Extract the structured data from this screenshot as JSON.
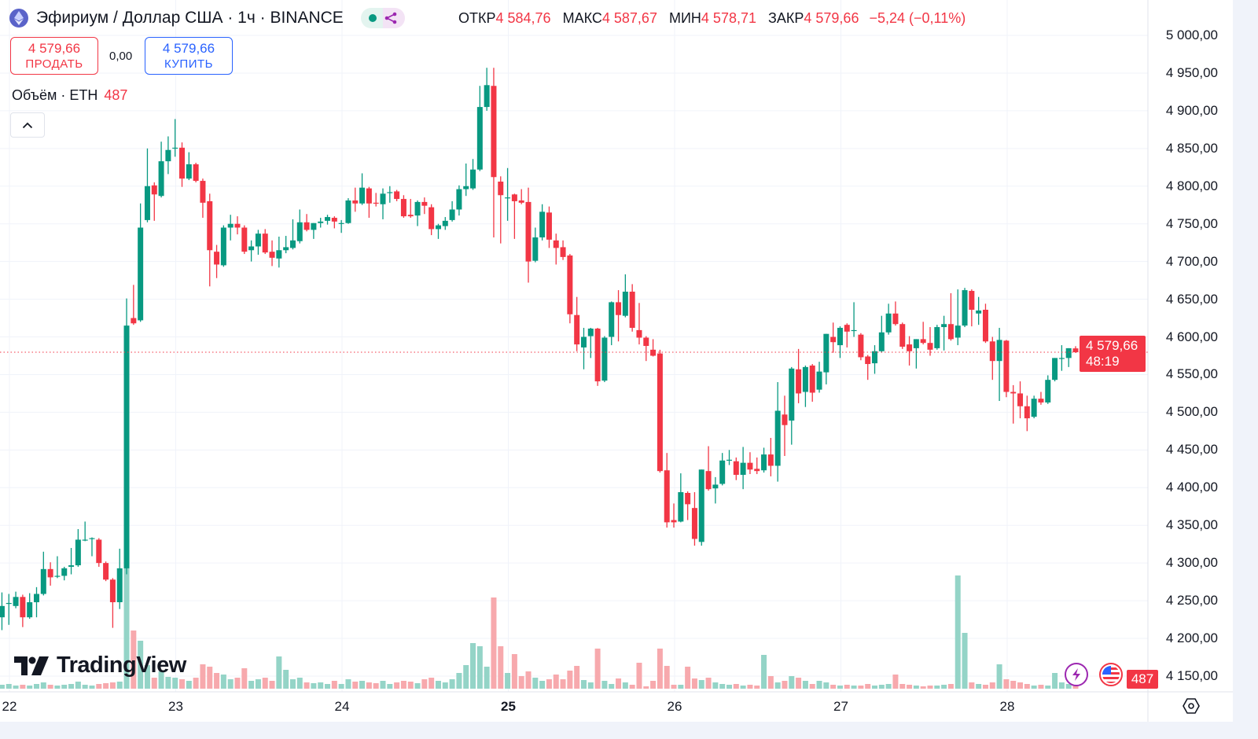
{
  "header": {
    "title": "Эфириум / Доллар США · 1ч · BINANCE",
    "ohlc": {
      "open_label": "ОТКР",
      "open": "4 584,76",
      "high_label": "МАКС",
      "high": "4 587,67",
      "low_label": "МИН",
      "low": "4 578,71",
      "close_label": "ЗАКР",
      "close": "4 579,66",
      "change": "−5,24 (−0,11%)"
    }
  },
  "trade": {
    "sell_price": "4 579,66",
    "sell_label": "ПРОДАТЬ",
    "spread": "0,00",
    "buy_price": "4 579,66",
    "buy_label": "КУПИТЬ"
  },
  "volume_legend": {
    "label": "Объём · ETH",
    "value": "487"
  },
  "price_axis": [
    "5 000,00",
    "4 950,00",
    "4 900,00",
    "4 850,00",
    "4 800,00",
    "4 750,00",
    "4 700,00",
    "4 650,00",
    "4 600,00",
    "4 550,00",
    "4 500,00",
    "4 450,00",
    "4 400,00",
    "4 350,00",
    "4 300,00",
    "4 250,00",
    "4 200,00",
    "4 150,00"
  ],
  "time_axis": [
    {
      "label": "22"
    },
    {
      "label": "23"
    },
    {
      "label": "24"
    },
    {
      "label": "25",
      "bold": true
    },
    {
      "label": "26"
    },
    {
      "label": "27"
    },
    {
      "label": "28"
    }
  ],
  "current_price": {
    "price": "4 579,66",
    "countdown": "48:19"
  },
  "current_volume": "487",
  "brand": "TradingView",
  "colors": {
    "up": "#089981",
    "down": "#f23645",
    "up_volume": "#94d4c7",
    "down_volume": "#f7a9ad",
    "buy": "#2962ff",
    "grid": "#f0f3fa"
  },
  "icons": [
    "ethereum-icon",
    "share-icon",
    "chevron-up-icon",
    "lightning-icon",
    "us-flag-icon",
    "settings-icon"
  ],
  "chart_data": {
    "type": "candlestick",
    "interval": "1h",
    "x_start": "21 23:00",
    "ylim": [
      4150,
      5000
    ],
    "grid": true,
    "ohlc": [
      [
        4228,
        4261,
        4211,
        4243
      ],
      [
        4247,
        4259,
        4218,
        4247
      ],
      [
        4243,
        4262,
        4240,
        4255
      ],
      [
        4255,
        4258,
        4215,
        4228
      ],
      [
        4228,
        4260,
        4226,
        4248
      ],
      [
        4248,
        4268,
        4228,
        4259
      ],
      [
        4259,
        4315,
        4257,
        4292
      ],
      [
        4292,
        4301,
        4270,
        4281
      ],
      [
        4283,
        4309,
        4280,
        4283
      ],
      [
        4283,
        4295,
        4277,
        4293
      ],
      [
        4295,
        4320,
        4285,
        4297
      ],
      [
        4297,
        4345,
        4295,
        4331
      ],
      [
        4331,
        4355,
        4329,
        4331
      ],
      [
        4333,
        4334,
        4309,
        4333
      ],
      [
        4331,
        4333,
        4295,
        4300
      ],
      [
        4300,
        4302,
        4276,
        4278
      ],
      [
        4278,
        4280,
        4214,
        4248
      ],
      [
        4248,
        4319,
        4239,
        4293
      ],
      [
        4293,
        4651,
        4285,
        4615
      ],
      [
        4625,
        4669,
        4616,
        4618
      ],
      [
        4622,
        4777,
        4620,
        4745
      ],
      [
        4755,
        4850,
        4752,
        4800
      ],
      [
        4801,
        4805,
        4754,
        4789
      ],
      [
        4787,
        4859,
        4785,
        4833
      ],
      [
        4833,
        4866,
        4816,
        4848
      ],
      [
        4851,
        4889,
        4839,
        4851
      ],
      [
        4851,
        4858,
        4799,
        4810
      ],
      [
        4810,
        4845,
        4808,
        4829
      ],
      [
        4829,
        4831,
        4805,
        4807
      ],
      [
        4807,
        4810,
        4758,
        4778
      ],
      [
        4780,
        4790,
        4667,
        4715
      ],
      [
        4713,
        4722,
        4678,
        4696
      ],
      [
        4695,
        4748,
        4693,
        4745
      ],
      [
        4745,
        4762,
        4728,
        4750
      ],
      [
        4750,
        4760,
        4736,
        4745
      ],
      [
        4745,
        4748,
        4710,
        4713
      ],
      [
        4715,
        4728,
        4700,
        4720
      ],
      [
        4720,
        4742,
        4709,
        4737
      ],
      [
        4737,
        4743,
        4710,
        4712
      ],
      [
        4713,
        4728,
        4694,
        4705
      ],
      [
        4704,
        4733,
        4692,
        4715
      ],
      [
        4715,
        4734,
        4711,
        4719
      ],
      [
        4718,
        4756,
        4716,
        4728
      ],
      [
        4727,
        4769,
        4724,
        4752
      ],
      [
        4752,
        4763,
        4740,
        4742
      ],
      [
        4742,
        4751,
        4730,
        4751
      ],
      [
        4751,
        4758,
        4745,
        4753
      ],
      [
        4754,
        4762,
        4749,
        4759
      ],
      [
        4758,
        4760,
        4744,
        4753
      ],
      [
        4751,
        4755,
        4738,
        4751
      ],
      [
        4751,
        4784,
        4750,
        4781
      ],
      [
        4781,
        4798,
        4766,
        4777
      ],
      [
        4777,
        4817,
        4775,
        4798
      ],
      [
        4797,
        4799,
        4758,
        4777
      ],
      [
        4778,
        4791,
        4773,
        4777
      ],
      [
        4776,
        4797,
        4756,
        4790
      ],
      [
        4792,
        4800,
        4778,
        4792
      ],
      [
        4793,
        4795,
        4780,
        4783
      ],
      [
        4783,
        4788,
        4758,
        4760
      ],
      [
        4762,
        4783,
        4758,
        4760
      ],
      [
        4761,
        4781,
        4747,
        4779
      ],
      [
        4779,
        4785,
        4763,
        4774
      ],
      [
        4772,
        4776,
        4735,
        4743
      ],
      [
        4743,
        4750,
        4730,
        4748
      ],
      [
        4747,
        4759,
        4742,
        4754
      ],
      [
        4755,
        4780,
        4753,
        4769
      ],
      [
        4769,
        4801,
        4761,
        4796
      ],
      [
        4796,
        4830,
        4787,
        4800
      ],
      [
        4797,
        4836,
        4795,
        4822
      ],
      [
        4822,
        4933,
        4820,
        4905
      ],
      [
        4905,
        4957,
        4900,
        4934
      ],
      [
        4933,
        4957,
        4732,
        4812
      ],
      [
        4806,
        4813,
        4724,
        4788
      ],
      [
        4785,
        4824,
        4754,
        4785
      ],
      [
        4789,
        4790,
        4730,
        4780
      ],
      [
        4781,
        4796,
        4776,
        4778
      ],
      [
        4779,
        4798,
        4672,
        4700
      ],
      [
        4701,
        4745,
        4699,
        4732
      ],
      [
        4732,
        4776,
        4728,
        4766
      ],
      [
        4765,
        4773,
        4718,
        4729
      ],
      [
        4728,
        4737,
        4696,
        4718
      ],
      [
        4719,
        4728,
        4702,
        4706
      ],
      [
        4708,
        4710,
        4618,
        4630
      ],
      [
        4629,
        4653,
        4581,
        4590
      ],
      [
        4586,
        4612,
        4557,
        4600
      ],
      [
        4601,
        4612,
        4572,
        4611
      ],
      [
        4611,
        4612,
        4535,
        4541
      ],
      [
        4542,
        4601,
        4540,
        4599
      ],
      [
        4600,
        4647,
        4589,
        4646
      ],
      [
        4646,
        4662,
        4594,
        4629
      ],
      [
        4628,
        4683,
        4626,
        4660
      ],
      [
        4660,
        4670,
        4607,
        4612
      ],
      [
        4609,
        4645,
        4590,
        4599
      ],
      [
        4599,
        4601,
        4568,
        4588
      ],
      [
        4583,
        4597,
        4574,
        4575
      ],
      [
        4578,
        4583,
        4420,
        4422
      ],
      [
        4423,
        4446,
        4347,
        4354
      ],
      [
        4357,
        4379,
        4347,
        4354
      ],
      [
        4355,
        4419,
        4354,
        4394
      ],
      [
        4393,
        4395,
        4357,
        4378
      ],
      [
        4373,
        4394,
        4323,
        4332
      ],
      [
        4328,
        4424,
        4323,
        4424
      ],
      [
        4422,
        4455,
        4396,
        4398
      ],
      [
        4399,
        4414,
        4379,
        4404
      ],
      [
        4405,
        4446,
        4403,
        4436
      ],
      [
        4437,
        4450,
        4430,
        4437
      ],
      [
        4435,
        4440,
        4410,
        4417
      ],
      [
        4417,
        4454,
        4398,
        4433
      ],
      [
        4433,
        4447,
        4418,
        4424
      ],
      [
        4425,
        4440,
        4418,
        4422
      ],
      [
        4423,
        4453,
        4420,
        4444
      ],
      [
        4444,
        4466,
        4415,
        4429
      ],
      [
        4429,
        4540,
        4408,
        4502
      ],
      [
        4497,
        4522,
        4442,
        4483
      ],
      [
        4489,
        4560,
        4457,
        4558
      ],
      [
        4557,
        4584,
        4512,
        4525
      ],
      [
        4527,
        4562,
        4507,
        4560
      ],
      [
        4562,
        4564,
        4514,
        4526
      ],
      [
        4530,
        4567,
        4526,
        4554
      ],
      [
        4553,
        4604,
        4537,
        4604
      ],
      [
        4600,
        4619,
        4579,
        4593
      ],
      [
        4589,
        4614,
        4572,
        4612
      ],
      [
        4616,
        4618,
        4586,
        4607
      ],
      [
        4609,
        4646,
        4600,
        4609
      ],
      [
        4603,
        4605,
        4569,
        4573
      ],
      [
        4574,
        4576,
        4543,
        4564
      ],
      [
        4565,
        4589,
        4551,
        4581
      ],
      [
        4581,
        4628,
        4579,
        4606
      ],
      [
        4606,
        4644,
        4603,
        4631
      ],
      [
        4631,
        4647,
        4615,
        4617
      ],
      [
        4617,
        4619,
        4584,
        4587
      ],
      [
        4590,
        4601,
        4562,
        4581
      ],
      [
        4585,
        4597,
        4558,
        4597
      ],
      [
        4597,
        4620,
        4590,
        4592
      ],
      [
        4592,
        4613,
        4575,
        4583
      ],
      [
        4585,
        4616,
        4583,
        4613
      ],
      [
        4613,
        4628,
        4582,
        4617
      ],
      [
        4617,
        4658,
        4595,
        4597
      ],
      [
        4599,
        4663,
        4589,
        4615
      ],
      [
        4615,
        4665,
        4613,
        4662
      ],
      [
        4661,
        4663,
        4614,
        4636
      ],
      [
        4631,
        4653,
        4616,
        4635
      ],
      [
        4636,
        4644,
        4592,
        4594
      ],
      [
        4594,
        4600,
        4543,
        4568
      ],
      [
        4568,
        4612,
        4515,
        4596
      ],
      [
        4595,
        4596,
        4520,
        4527
      ],
      [
        4527,
        4536,
        4485,
        4525
      ],
      [
        4525,
        4541,
        4492,
        4508
      ],
      [
        4508,
        4522,
        4475,
        4492
      ],
      [
        4494,
        4522,
        4492,
        4518
      ],
      [
        4518,
        4527,
        4510,
        4513
      ],
      [
        4513,
        4549,
        4511,
        4543
      ],
      [
        4543,
        4572,
        4541,
        4572
      ],
      [
        4572,
        4589,
        4555,
        4572
      ],
      [
        4572,
        4585,
        4560,
        4585
      ],
      [
        4584.76,
        4587.67,
        4578.71,
        4579.66
      ]
    ],
    "volume": [
      300,
      360,
      240,
      300,
      240,
      360,
      480,
      300,
      240,
      300,
      360,
      540,
      300,
      240,
      360,
      420,
      480,
      540,
      11460,
      4440,
      3660,
      1800,
      840,
      1320,
      900,
      840,
      720,
      600,
      840,
      1860,
      1680,
      1200,
      1080,
      720,
      840,
      1560,
      600,
      720,
      840,
      600,
      2460,
      1440,
      720,
      840,
      480,
      420,
      480,
      360,
      600,
      360,
      720,
      540,
      600,
      480,
      420,
      600,
      360,
      480,
      600,
      540,
      420,
      720,
      840,
      600,
      480,
      720,
      1200,
      1800,
      3480,
      3240,
      1680,
      6960,
      3240,
      1200,
      2640,
      960,
      1320,
      840,
      600,
      720,
      1080,
      720,
      1380,
      1740,
      660,
      480,
      3060,
      600,
      360,
      780,
      480,
      300,
      1980,
      180,
      600,
      3060,
      1740,
      300,
      300,
      1680,
      780,
      660,
      840,
      480,
      360,
      300,
      360,
      240,
      300,
      240,
      2580,
      960,
      480,
      600,
      960,
      840,
      600,
      360,
      600,
      480,
      300,
      240,
      300,
      240,
      240,
      360,
      240,
      300,
      360,
      1080,
      360,
      300,
      240,
      180,
      240,
      240,
      300,
      360,
      8640,
      4260,
      480,
      360,
      300,
      480,
      1860,
      720,
      600,
      480,
      360,
      240,
      300,
      240,
      1200,
      480,
      360,
      487
    ]
  }
}
